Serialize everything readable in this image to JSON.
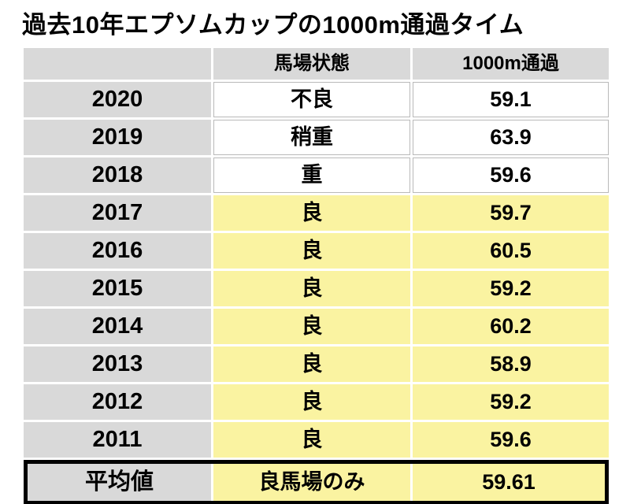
{
  "chart_data": {
    "type": "table",
    "title": "過去10年エプソムカップの1000m通過タイム",
    "columns": [
      "",
      "馬場状態",
      "1000m通過"
    ],
    "rows": [
      {
        "year": "2020",
        "condition": "不良",
        "time": "59.1",
        "highlighted": false
      },
      {
        "year": "2019",
        "condition": "稍重",
        "time": "63.9",
        "highlighted": false
      },
      {
        "year": "2018",
        "condition": "重",
        "time": "59.6",
        "highlighted": false
      },
      {
        "year": "2017",
        "condition": "良",
        "time": "59.7",
        "highlighted": true
      },
      {
        "year": "2016",
        "condition": "良",
        "time": "60.5",
        "highlighted": true
      },
      {
        "year": "2015",
        "condition": "良",
        "time": "59.2",
        "highlighted": true
      },
      {
        "year": "2014",
        "condition": "良",
        "time": "60.2",
        "highlighted": true
      },
      {
        "year": "2013",
        "condition": "良",
        "time": "58.9",
        "highlighted": true
      },
      {
        "year": "2012",
        "condition": "良",
        "time": "59.2",
        "highlighted": true
      },
      {
        "year": "2011",
        "condition": "良",
        "time": "59.6",
        "highlighted": true
      }
    ],
    "footer": {
      "label": "平均値",
      "condition": "良馬場のみ",
      "time": "59.61"
    },
    "colors": {
      "header_bg": "#d9d9d9",
      "year_column_bg": "#d9d9d9",
      "highlight_bg": "#faf3a1",
      "plain_bg": "#ffffff",
      "footer_border": "#000000"
    },
    "layout": {
      "legend": "off",
      "grid": "off"
    }
  }
}
